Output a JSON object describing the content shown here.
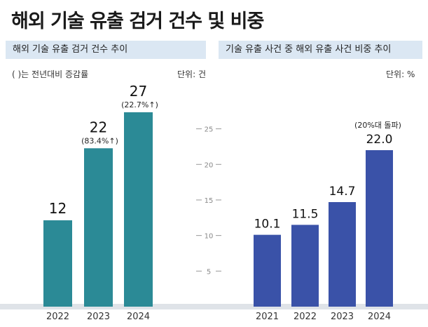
{
  "title": "해외 기술 유출 검거 건수 및 비중",
  "left_panel": {
    "subtitle": "해외 기술 유출 검거 건수 추이",
    "note": "(  )는 전년대비 증감률",
    "unit": "단위: 건"
  },
  "right_panel": {
    "subtitle": "기술 유출 사건 중 해외 유출 사건 비중 추이",
    "unit": "단위: %"
  },
  "colors": {
    "teal": "#2b8a96",
    "blue": "#3a52a8",
    "panel_bg": "#dbe7f3",
    "base": "#dfe3e8"
  },
  "chart_data": [
    {
      "type": "bar",
      "title": "해외 기술 유출 검거 건수 추이",
      "unit": "건",
      "categories": [
        "2022",
        "2023",
        "2024"
      ],
      "values": [
        12,
        22,
        27
      ],
      "value_labels": [
        "12",
        "22",
        "27"
      ],
      "annotations": [
        "",
        "(83.4%↑)",
        "(22.7%↑)"
      ],
      "ylim": [
        0,
        27
      ]
    },
    {
      "type": "bar",
      "title": "기술 유출 사건 중 해외 유출 사건 비중 추이",
      "unit": "%",
      "categories": [
        "2021",
        "2022",
        "2023",
        "2024"
      ],
      "values": [
        10.1,
        11.5,
        14.7,
        22.0
      ],
      "value_labels": [
        "10.1",
        "11.5",
        "14.7",
        "22.0"
      ],
      "annotations": [
        "",
        "",
        "",
        "(20%대 돌파)"
      ],
      "yticks": [
        "5",
        "10",
        "15",
        "20",
        "25"
      ],
      "ylim": [
        0,
        25
      ]
    }
  ]
}
